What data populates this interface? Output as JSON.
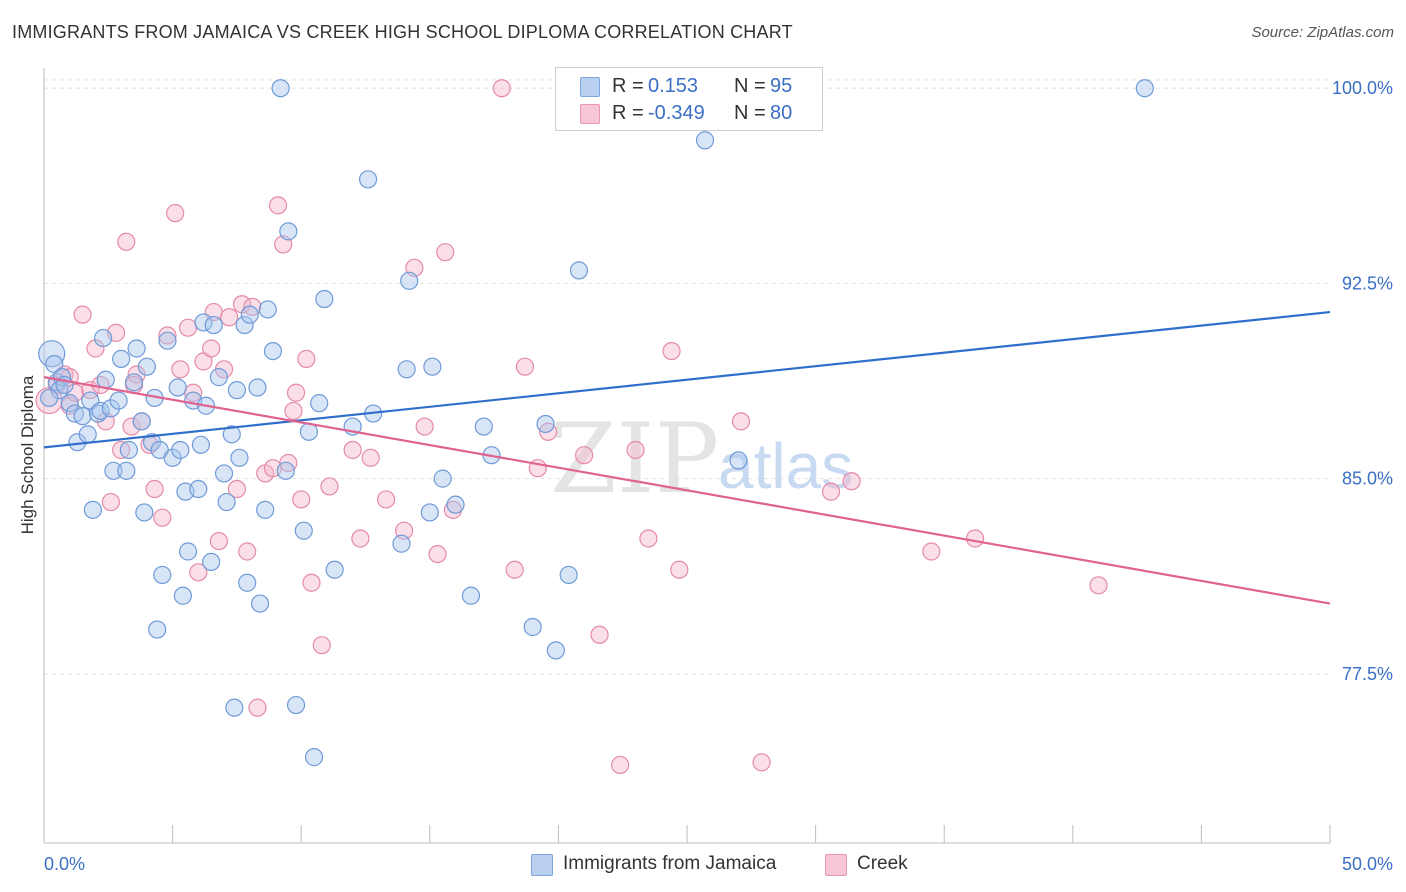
{
  "title": "IMMIGRANTS FROM JAMAICA VS CREEK HIGH SCHOOL DIPLOMA CORRELATION CHART",
  "source": "Source: ZipAtlas.com",
  "watermark": {
    "zip": "ZIP",
    "atlas": "atlas"
  },
  "legend": {
    "rows": [
      {
        "r_label": "R =",
        "r_value": "0.153",
        "n_label": "N =",
        "n_value": "95"
      },
      {
        "r_label": "R =",
        "r_value": "-0.349",
        "n_label": "N =",
        "n_value": "80"
      }
    ]
  },
  "colors": {
    "blue_fill": "#a9c6ee",
    "blue_stroke": "#6f9ad8",
    "blue_line": "#2f6fcb",
    "pink_fill": "#f5b8cb",
    "pink_stroke": "#e58aa8",
    "pink_line": "#e0638f",
    "tick_label": "#3a6fc4",
    "grid": "#e3e3e3"
  },
  "chart_data": {
    "type": "scatter",
    "title": "IMMIGRANTS FROM JAMAICA VS CREEK HIGH SCHOOL DIPLOMA CORRELATION CHART",
    "xlabel": "",
    "ylabel": "High School Diploma",
    "xlim": [
      0,
      50
    ],
    "ylim": [
      71,
      100.7
    ],
    "x_tick_labels": [
      "0.0%",
      "50.0%"
    ],
    "y_ticks": [
      77.5,
      85.0,
      92.5,
      100.0
    ],
    "y_tick_labels": [
      "77.5%",
      "85.0%",
      "92.5%",
      "100.0%"
    ],
    "grid": true,
    "legend_position": "top-center",
    "series": [
      {
        "name": "Immigrants from Jamaica",
        "color": "#a9c6ee",
        "trend": {
          "x": [
            0,
            50
          ],
          "y": [
            86.2,
            91.4
          ]
        },
        "points": [
          [
            0.3,
            89.8
          ],
          [
            0.4,
            89.4
          ],
          [
            0.5,
            88.7
          ],
          [
            0.6,
            88.4
          ],
          [
            0.7,
            88.9
          ],
          [
            0.8,
            88.6
          ],
          [
            1.0,
            87.9
          ],
          [
            1.2,
            87.5
          ],
          [
            1.3,
            86.4
          ],
          [
            1.5,
            87.4
          ],
          [
            1.7,
            86.7
          ],
          [
            1.8,
            88.0
          ],
          [
            1.9,
            83.8
          ],
          [
            2.1,
            87.5
          ],
          [
            2.2,
            87.6
          ],
          [
            2.3,
            90.4
          ],
          [
            2.4,
            88.8
          ],
          [
            2.6,
            87.7
          ],
          [
            2.7,
            85.3
          ],
          [
            2.9,
            88.0
          ],
          [
            3.0,
            89.6
          ],
          [
            3.2,
            85.3
          ],
          [
            3.3,
            86.1
          ],
          [
            3.5,
            88.7
          ],
          [
            3.6,
            90.0
          ],
          [
            3.8,
            87.2
          ],
          [
            3.9,
            83.7
          ],
          [
            4.0,
            89.3
          ],
          [
            4.2,
            86.4
          ],
          [
            4.3,
            88.1
          ],
          [
            4.4,
            79.2
          ],
          [
            4.5,
            86.1
          ],
          [
            4.6,
            81.3
          ],
          [
            4.8,
            90.3
          ],
          [
            5.0,
            85.8
          ],
          [
            5.2,
            88.5
          ],
          [
            5.3,
            86.1
          ],
          [
            5.4,
            80.5
          ],
          [
            5.5,
            84.5
          ],
          [
            5.6,
            82.2
          ],
          [
            5.8,
            88.0
          ],
          [
            6.0,
            84.6
          ],
          [
            6.1,
            86.3
          ],
          [
            6.2,
            91.0
          ],
          [
            6.3,
            87.8
          ],
          [
            6.5,
            81.8
          ],
          [
            6.6,
            90.9
          ],
          [
            6.8,
            88.9
          ],
          [
            7.0,
            85.2
          ],
          [
            7.1,
            84.1
          ],
          [
            7.3,
            86.7
          ],
          [
            7.4,
            76.2
          ],
          [
            7.5,
            88.4
          ],
          [
            7.6,
            85.8
          ],
          [
            7.8,
            90.9
          ],
          [
            7.9,
            81.0
          ],
          [
            8.0,
            91.3
          ],
          [
            8.3,
            88.5
          ],
          [
            8.4,
            80.2
          ],
          [
            8.6,
            83.8
          ],
          [
            8.7,
            91.5
          ],
          [
            8.9,
            89.9
          ],
          [
            9.2,
            100.0
          ],
          [
            9.4,
            85.3
          ],
          [
            9.5,
            94.5
          ],
          [
            9.8,
            76.3
          ],
          [
            10.1,
            83.0
          ],
          [
            10.3,
            86.8
          ],
          [
            10.5,
            74.3
          ],
          [
            10.7,
            87.9
          ],
          [
            10.9,
            91.9
          ],
          [
            11.3,
            81.5
          ],
          [
            12.0,
            87.0
          ],
          [
            12.6,
            96.5
          ],
          [
            12.8,
            87.5
          ],
          [
            13.9,
            82.5
          ],
          [
            14.1,
            89.2
          ],
          [
            14.2,
            92.6
          ],
          [
            15.0,
            83.7
          ],
          [
            15.1,
            89.3
          ],
          [
            15.5,
            85.0
          ],
          [
            16.0,
            84.0
          ],
          [
            16.6,
            80.5
          ],
          [
            17.1,
            87.0
          ],
          [
            17.4,
            85.9
          ],
          [
            19.0,
            79.3
          ],
          [
            19.5,
            87.1
          ],
          [
            19.9,
            78.4
          ],
          [
            20.4,
            81.3
          ],
          [
            20.8,
            93.0
          ],
          [
            25.7,
            98.0
          ],
          [
            27.0,
            85.7
          ],
          [
            42.8,
            100.0
          ],
          [
            20.8,
            100.0
          ],
          [
            0.2,
            88.1
          ]
        ],
        "sizes": {
          "0.3,89.8": 14
        }
      },
      {
        "name": "Creek",
        "color": "#f5b8cb",
        "trend": {
          "x": [
            0,
            50
          ],
          "y": [
            88.9,
            80.2
          ]
        },
        "points": [
          [
            0.2,
            88.0
          ],
          [
            0.5,
            88.6
          ],
          [
            0.8,
            89.0
          ],
          [
            1.0,
            87.8
          ],
          [
            1.2,
            88.3
          ],
          [
            1.5,
            91.3
          ],
          [
            1.8,
            88.4
          ],
          [
            2.0,
            90.0
          ],
          [
            2.2,
            88.6
          ],
          [
            2.4,
            87.2
          ],
          [
            2.6,
            84.1
          ],
          [
            2.8,
            90.6
          ],
          [
            3.0,
            86.1
          ],
          [
            3.2,
            94.1
          ],
          [
            3.4,
            87.0
          ],
          [
            3.6,
            89.0
          ],
          [
            3.8,
            87.2
          ],
          [
            4.1,
            86.3
          ],
          [
            4.3,
            84.6
          ],
          [
            4.6,
            83.5
          ],
          [
            4.8,
            90.5
          ],
          [
            5.1,
            95.2
          ],
          [
            5.3,
            89.2
          ],
          [
            5.6,
            90.8
          ],
          [
            5.8,
            88.3
          ],
          [
            6.0,
            81.4
          ],
          [
            6.2,
            89.5
          ],
          [
            6.5,
            90.0
          ],
          [
            6.6,
            91.4
          ],
          [
            6.8,
            82.6
          ],
          [
            7.0,
            89.2
          ],
          [
            7.2,
            91.2
          ],
          [
            7.5,
            84.6
          ],
          [
            7.7,
            91.7
          ],
          [
            7.9,
            82.2
          ],
          [
            8.1,
            91.6
          ],
          [
            8.3,
            76.2
          ],
          [
            8.6,
            85.2
          ],
          [
            8.9,
            85.4
          ],
          [
            9.1,
            95.5
          ],
          [
            9.3,
            94.0
          ],
          [
            9.5,
            85.6
          ],
          [
            9.7,
            87.6
          ],
          [
            10.0,
            84.2
          ],
          [
            10.2,
            89.6
          ],
          [
            10.4,
            81.0
          ],
          [
            10.8,
            78.6
          ],
          [
            11.1,
            84.7
          ],
          [
            12.0,
            86.1
          ],
          [
            12.3,
            82.7
          ],
          [
            12.7,
            85.8
          ],
          [
            13.3,
            84.2
          ],
          [
            14.0,
            83.0
          ],
          [
            14.4,
            93.1
          ],
          [
            14.8,
            87.0
          ],
          [
            15.3,
            82.1
          ],
          [
            15.6,
            93.7
          ],
          [
            15.9,
            83.8
          ],
          [
            17.8,
            100.0
          ],
          [
            18.3,
            81.5
          ],
          [
            18.7,
            89.3
          ],
          [
            19.2,
            85.4
          ],
          [
            19.6,
            86.8
          ],
          [
            21.0,
            85.9
          ],
          [
            21.6,
            79.0
          ],
          [
            22.4,
            74.0
          ],
          [
            23.0,
            86.1
          ],
          [
            23.5,
            82.7
          ],
          [
            24.4,
            89.9
          ],
          [
            24.7,
            81.5
          ],
          [
            27.1,
            87.2
          ],
          [
            27.9,
            74.1
          ],
          [
            30.6,
            84.5
          ],
          [
            31.4,
            84.9
          ],
          [
            34.5,
            82.2
          ],
          [
            36.2,
            82.7
          ],
          [
            41.0,
            80.9
          ],
          [
            1.0,
            88.9
          ],
          [
            3.5,
            88.6
          ],
          [
            9.8,
            88.3
          ]
        ]
      }
    ]
  },
  "bottom_legend": {
    "items": [
      "Immigrants from Jamaica",
      "Creek"
    ]
  }
}
